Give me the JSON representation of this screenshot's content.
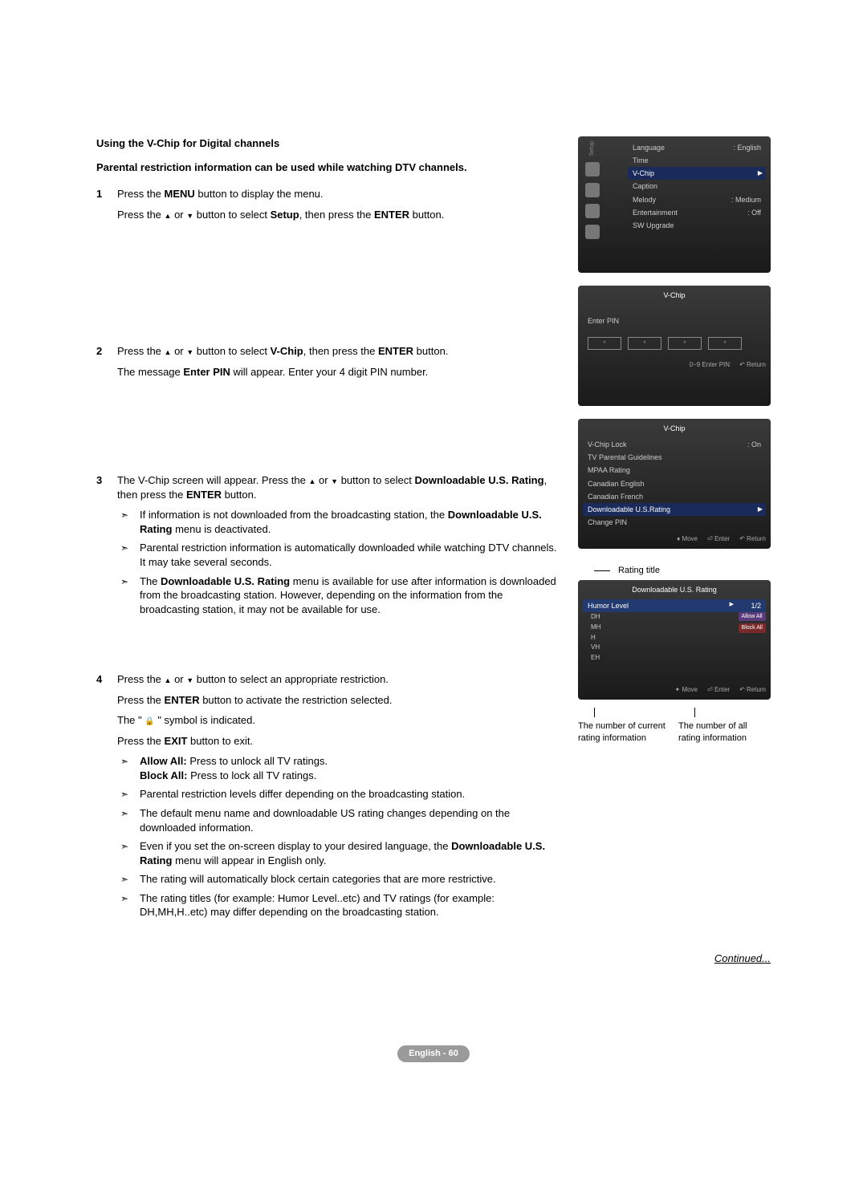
{
  "title": "Using the V-Chip for Digital channels",
  "subtitle": "Parental restriction information can be used while watching DTV channels.",
  "steps": {
    "s1": {
      "num": "1",
      "p1a": "Press the ",
      "p1b": "MENU",
      "p1c": " button to display the menu.",
      "p2a": "Press the ",
      "p2b": " or ",
      "p2c": " button to select ",
      "p2d": "Setup",
      "p2e": ", then press the ",
      "p2f": "ENTER",
      "p2g": " button."
    },
    "s2": {
      "num": "2",
      "p1a": "Press the ",
      "p1b": " or ",
      "p1c": " button to select ",
      "p1d": "V-Chip",
      "p1e": ", then press the ",
      "p1f": "ENTER",
      "p1g": " button.",
      "p2a": "The message ",
      "p2b": "Enter PIN",
      "p2c": " will appear. Enter your 4 digit PIN number."
    },
    "s3": {
      "num": "3",
      "p1a": "The V-Chip screen will appear. Press the ",
      "p1b": " or ",
      "p1c": " button to select ",
      "p1d": "Downloadable U.S. Rating",
      "p1e": ", then press the ",
      "p1f": "ENTER",
      "p1g": " button.",
      "b1a": "If information is not downloaded from the broadcasting station, the ",
      "b1b": "Downloadable U.S. Rating",
      "b1c": " menu is deactivated.",
      "b2": "Parental restriction information is automatically downloaded while watching DTV channels. It may take several seconds.",
      "b3a": "The ",
      "b3b": "Downloadable U.S. Rating",
      "b3c": " menu is available for use after information is downloaded from the broadcasting station. However, depending on the information from the broadcasting station, it may not be available for use."
    },
    "s4": {
      "num": "4",
      "p1a": "Press the ",
      "p1b": " or ",
      "p1c": " button to select an appropriate restriction.",
      "p2a": "Press the ",
      "p2b": "ENTER",
      "p2c": " button to activate the restriction selected.",
      "p3a": "The \" ",
      "p3b": " \" symbol is indicated.",
      "p4a": "Press the ",
      "p4b": "EXIT",
      "p4c": " button to exit.",
      "b1a": "Allow All:",
      "b1b": " Press to unlock all TV ratings.",
      "b1c": "Block All:",
      "b1d": " Press to lock all TV ratings.",
      "b2": "Parental restriction levels differ depending on the broadcasting station.",
      "b3": "The default menu name and downloadable US rating changes depending on the downloaded information.",
      "b4a": "Even if you set the on-screen display to your desired language, the ",
      "b4b": "Downloadable U.S. Rating",
      "b4c": " menu will appear in English only.",
      "b5": "The rating will automatically block certain categories that are more restrictive.",
      "b6": "The rating titles (for example: Humor Level..etc) and TV ratings (for example: DH,MH,H..etc) may differ depending on the broadcasting station."
    }
  },
  "continued": "Continued...",
  "footer": "English - 60",
  "osd1": {
    "side_label": "Setup",
    "items": [
      {
        "label": "Language",
        "value": ": English"
      },
      {
        "label": "Time",
        "value": ""
      },
      {
        "label": "V-Chip",
        "value": "",
        "sel": true
      },
      {
        "label": "Caption",
        "value": ""
      },
      {
        "label": "Melody",
        "value": ": Medium"
      },
      {
        "label": "Entertainment",
        "value": ": Off"
      },
      {
        "label": "SW Upgrade",
        "value": ""
      }
    ]
  },
  "osd2": {
    "title": "V-Chip",
    "enter_pin": "Enter PIN",
    "footer_enter": "0~9 Enter PIN",
    "footer_return": "↶ Return"
  },
  "osd3": {
    "title": "V-Chip",
    "items": [
      {
        "label": "V-Chip Lock",
        "value": ": On"
      },
      {
        "label": "TV Parental Guidelines",
        "value": ""
      },
      {
        "label": "MPAA Rating",
        "value": ""
      },
      {
        "label": "Canadian English",
        "value": ""
      },
      {
        "label": "Canadian French",
        "value": ""
      },
      {
        "label": "Downloadable U.S.Rating",
        "value": "",
        "sel": true
      },
      {
        "label": "Change PIN",
        "value": ""
      }
    ],
    "footer_move": "♦ Move",
    "footer_enter": "⏎ Enter",
    "footer_return": "↶ Return"
  },
  "osd4": {
    "label_rating_title": "Rating title",
    "title": "Downloadable U.S. Rating",
    "header": "Humor Level",
    "page": "1/2",
    "items": [
      "DH",
      "MH",
      "H",
      "VH",
      "EH"
    ],
    "allow_all": "Allow All",
    "block_all": "Block All",
    "footer_move": "✦ Move",
    "footer_enter": "⏎ Enter",
    "footer_return": "↶ Return",
    "cap1": "The number of current rating information",
    "cap2": "The number of all rating information"
  }
}
